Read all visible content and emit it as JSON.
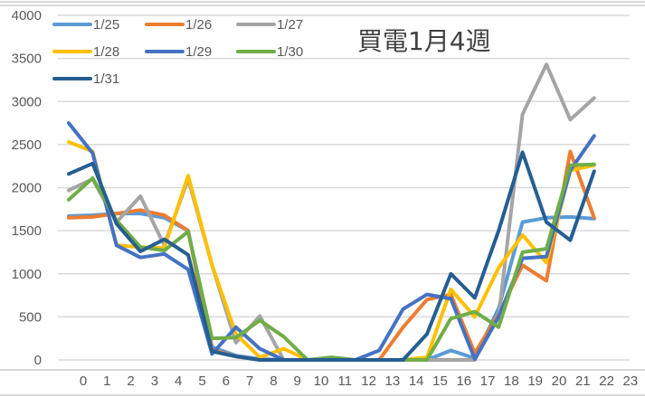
{
  "chart_data": {
    "type": "line",
    "title": "買電1月4週",
    "xlabel": "",
    "ylabel": "",
    "ylim": [
      0,
      4000
    ],
    "yticks": [
      0,
      500,
      1000,
      1500,
      2000,
      2500,
      3000,
      3500,
      4000
    ],
    "x": [
      0,
      1,
      2,
      3,
      4,
      5,
      6,
      7,
      8,
      9,
      10,
      11,
      12,
      13,
      14,
      15,
      16,
      17,
      18,
      19,
      20,
      21,
      22
    ],
    "xtick_labels": [
      "0",
      "1",
      "2",
      "3",
      "4",
      "5",
      "6",
      "7",
      "8",
      "9",
      "10",
      "11",
      "12",
      "13",
      "14",
      "15",
      "16",
      "17",
      "18",
      "19",
      "20",
      "21",
      "22",
      "23"
    ],
    "grid": true,
    "legend_position": "top-left",
    "series": [
      {
        "name": "1/25",
        "color": "#5B9BD5",
        "values": [
          1670,
          1680,
          1700,
          1700,
          1650,
          1500,
          150,
          50,
          10,
          0,
          0,
          0,
          0,
          0,
          0,
          0,
          110,
          20,
          600,
          1600,
          1650,
          1660,
          1640
        ]
      },
      {
        "name": "1/26",
        "color": "#ED7D31",
        "values": [
          1650,
          1660,
          1700,
          1740,
          1680,
          1500,
          120,
          40,
          0,
          0,
          0,
          0,
          0,
          0,
          380,
          700,
          760,
          80,
          530,
          1100,
          920,
          2420,
          1650
        ]
      },
      {
        "name": "1/27",
        "color": "#A5A5A5",
        "values": [
          1970,
          2100,
          1600,
          1900,
          1330,
          2100,
          1100,
          200,
          510,
          0,
          0,
          0,
          0,
          0,
          0,
          0,
          0,
          0,
          500,
          2850,
          3430,
          2790,
          3040
        ]
      },
      {
        "name": "1/28",
        "color": "#FFC000",
        "values": [
          2530,
          2420,
          1330,
          1310,
          1300,
          2140,
          1100,
          300,
          30,
          130,
          0,
          0,
          0,
          0,
          0,
          30,
          820,
          500,
          1070,
          1450,
          1130,
          2200,
          2260
        ]
      },
      {
        "name": "1/29",
        "color": "#4472C4",
        "values": [
          2750,
          2400,
          1330,
          1190,
          1230,
          1050,
          70,
          380,
          130,
          0,
          0,
          0,
          0,
          110,
          590,
          760,
          710,
          10,
          500,
          1180,
          1200,
          2200,
          2600
        ]
      },
      {
        "name": "1/30",
        "color": "#70AD47",
        "values": [
          1860,
          2110,
          1620,
          1310,
          1270,
          1490,
          250,
          260,
          460,
          270,
          0,
          30,
          0,
          0,
          0,
          0,
          480,
          560,
          380,
          1250,
          1290,
          2260,
          2270
        ]
      },
      {
        "name": "1/31",
        "color": "#255E91",
        "values": [
          2160,
          2280,
          1580,
          1260,
          1400,
          1220,
          100,
          40,
          0,
          0,
          0,
          0,
          0,
          0,
          0,
          300,
          1000,
          720,
          1500,
          2410,
          1600,
          1390,
          2190
        ]
      }
    ]
  }
}
